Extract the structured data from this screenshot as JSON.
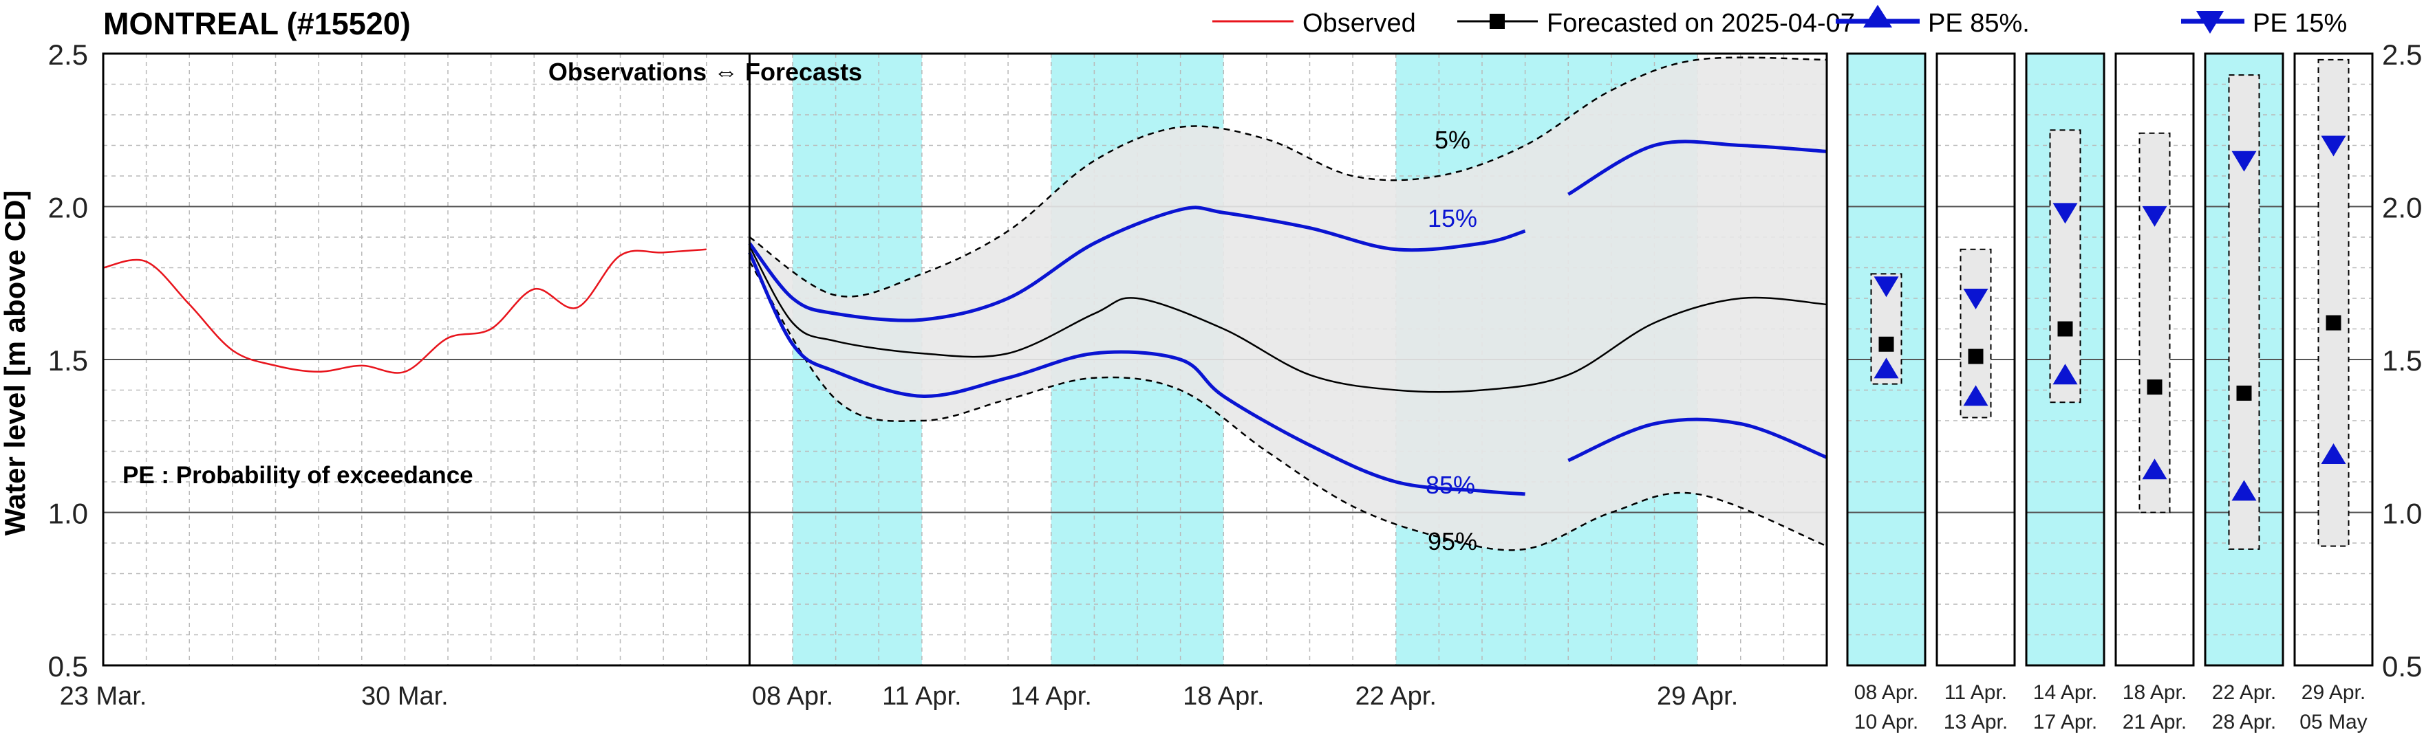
{
  "title": "MONTREAL (#15520)",
  "ylabel": "Water level [m above CD]",
  "boundary_label": "Observations ⇔ Forecasts",
  "pe_note": "PE : Probability of exceedance",
  "legend": {
    "observed": "Observed",
    "forecast": "Forecasted on 2025-04-07",
    "pe85": "PE 85%.",
    "pe15": "PE 15%"
  },
  "band_labels": {
    "p5": "5%",
    "p15": "15%",
    "p85": "85%",
    "p95": "95%"
  },
  "colors": {
    "observed": "#e8141c",
    "forecast": "#000000",
    "pe": "#0a14d2",
    "band": "#e8e8e8",
    "highlight": "#b4f4f6",
    "grid_minor": "#b9b9b9",
    "grid_major": "#555555"
  },
  "chart_data": [
    {
      "type": "line",
      "ylim": [
        0.5,
        2.5
      ],
      "xlim": [
        "2025-03-23",
        "2025-05-02"
      ],
      "yticks": [
        0.5,
        1.0,
        1.5,
        2.0,
        2.5
      ],
      "ytick_labels": [
        "0.5",
        "1.0",
        "1.5",
        "2.0",
        "2.5"
      ],
      "xticks": [
        {
          "date": "2025-03-23",
          "label": "23 Mar."
        },
        {
          "date": "2025-03-30",
          "label": "30 Mar."
        },
        {
          "date": "2025-04-08",
          "label": "08 Apr."
        },
        {
          "date": "2025-04-11",
          "label": "11 Apr."
        },
        {
          "date": "2025-04-14",
          "label": "14 Apr."
        },
        {
          "date": "2025-04-18",
          "label": "18 Apr."
        },
        {
          "date": "2025-04-22",
          "label": "22 Apr."
        },
        {
          "date": "2025-04-29",
          "label": "29 Apr."
        }
      ],
      "forecast_start": "2025-04-07",
      "highlight_periods": [
        [
          "2025-04-08",
          "2025-04-11"
        ],
        [
          "2025-04-14",
          "2025-04-18"
        ],
        [
          "2025-04-22",
          "2025-04-29"
        ]
      ],
      "series": [
        {
          "name": "Observed",
          "x": [
            "2025-03-23",
            "2025-03-24",
            "2025-03-25",
            "2025-03-26",
            "2025-03-27",
            "2025-03-28",
            "2025-03-29",
            "2025-03-30",
            "2025-03-31",
            "2025-04-01",
            "2025-04-02",
            "2025-04-03",
            "2025-04-04",
            "2025-04-05",
            "2025-04-06"
          ],
          "y": [
            1.8,
            1.82,
            1.68,
            1.53,
            1.48,
            1.46,
            1.48,
            1.46,
            1.57,
            1.6,
            1.73,
            1.67,
            1.84,
            1.85,
            1.86
          ]
        },
        {
          "name": "Forecasted on 2025-04-07",
          "x": [
            "2025-04-07",
            "2025-04-08",
            "2025-04-09",
            "2025-04-11",
            "2025-04-13",
            "2025-04-15",
            "2025-04-16",
            "2025-04-18",
            "2025-04-20",
            "2025-04-22",
            "2025-04-24",
            "2025-04-26",
            "2025-04-28",
            "2025-04-30",
            "2025-05-02"
          ],
          "y": [
            1.87,
            1.62,
            1.56,
            1.52,
            1.52,
            1.65,
            1.7,
            1.6,
            1.45,
            1.4,
            1.4,
            1.45,
            1.62,
            1.7,
            1.68
          ]
        },
        {
          "name": "PE 15%",
          "x": [
            "2025-04-07",
            "2025-04-08",
            "2025-04-09",
            "2025-04-11",
            "2025-04-13",
            "2025-04-15",
            "2025-04-17",
            "2025-04-18",
            "2025-04-20",
            "2025-04-22",
            "2025-04-24",
            "2025-04-25",
            "2025-04-26",
            "2025-04-28",
            "2025-04-30",
            "2025-05-02"
          ],
          "y": [
            1.88,
            1.7,
            1.65,
            1.63,
            1.7,
            1.88,
            1.99,
            1.98,
            1.93,
            1.86,
            1.88,
            1.92,
            2.04,
            2.2,
            2.2,
            2.18
          ]
        },
        {
          "name": "PE 85%",
          "x": [
            "2025-04-07",
            "2025-04-08",
            "2025-04-09",
            "2025-04-11",
            "2025-04-13",
            "2025-04-15",
            "2025-04-17",
            "2025-04-18",
            "2025-04-20",
            "2025-04-22",
            "2025-04-24",
            "2025-04-25",
            "2025-04-26",
            "2025-04-28",
            "2025-04-30",
            "2025-05-02"
          ],
          "y": [
            1.85,
            1.55,
            1.46,
            1.38,
            1.44,
            1.52,
            1.5,
            1.38,
            1.22,
            1.1,
            1.07,
            1.06,
            1.17,
            1.29,
            1.29,
            1.18
          ]
        },
        {
          "name": "5%",
          "x": [
            "2025-04-07",
            "2025-04-09",
            "2025-04-11",
            "2025-04-13",
            "2025-04-15",
            "2025-04-17",
            "2025-04-19",
            "2025-04-21",
            "2025-04-23",
            "2025-04-25",
            "2025-04-27",
            "2025-04-29",
            "2025-05-02"
          ],
          "y": [
            1.9,
            1.71,
            1.78,
            1.92,
            2.15,
            2.26,
            2.22,
            2.1,
            2.1,
            2.2,
            2.38,
            2.48,
            2.48
          ]
        },
        {
          "name": "95%",
          "x": [
            "2025-04-07",
            "2025-04-09",
            "2025-04-11",
            "2025-04-13",
            "2025-04-15",
            "2025-04-17",
            "2025-04-19",
            "2025-04-21",
            "2025-04-23",
            "2025-04-25",
            "2025-04-27",
            "2025-04-29",
            "2025-05-02"
          ],
          "y": [
            1.82,
            1.37,
            1.3,
            1.37,
            1.44,
            1.4,
            1.2,
            1.02,
            0.92,
            0.88,
            1.0,
            1.06,
            0.89
          ]
        }
      ]
    },
    {
      "type": "range",
      "ylim": [
        0.5,
        2.5
      ],
      "categories": [
        "08 Apr. 10 Apr.",
        "11 Apr. 13 Apr.",
        "14 Apr. 17 Apr.",
        "18 Apr. 21 Apr.",
        "22 Apr. 28 Apr.",
        "29 Apr. 05 May"
      ],
      "labels_top": [
        "08 Apr.",
        "11 Apr.",
        "14 Apr.",
        "18 Apr.",
        "22 Apr.",
        "29 Apr."
      ],
      "labels_bottom": [
        "10 Apr.",
        "13 Apr.",
        "17 Apr.",
        "21 Apr.",
        "28 Apr.",
        "05 May"
      ],
      "highlighted": [
        true,
        false,
        true,
        false,
        true,
        false
      ],
      "range_low": [
        1.42,
        1.31,
        1.36,
        1.0,
        0.88,
        0.89
      ],
      "range_high": [
        1.78,
        1.86,
        2.25,
        2.24,
        2.43,
        2.48
      ],
      "forecast": [
        1.55,
        1.51,
        1.6,
        1.41,
        1.39,
        1.62
      ],
      "pe15": [
        1.74,
        1.7,
        1.98,
        1.97,
        2.15,
        2.2
      ],
      "pe85": [
        1.47,
        1.38,
        1.45,
        1.14,
        1.07,
        1.19
      ],
      "ytick_labels": [
        "0.5",
        "1.0",
        "1.5",
        "2.0",
        "2.5"
      ]
    }
  ]
}
